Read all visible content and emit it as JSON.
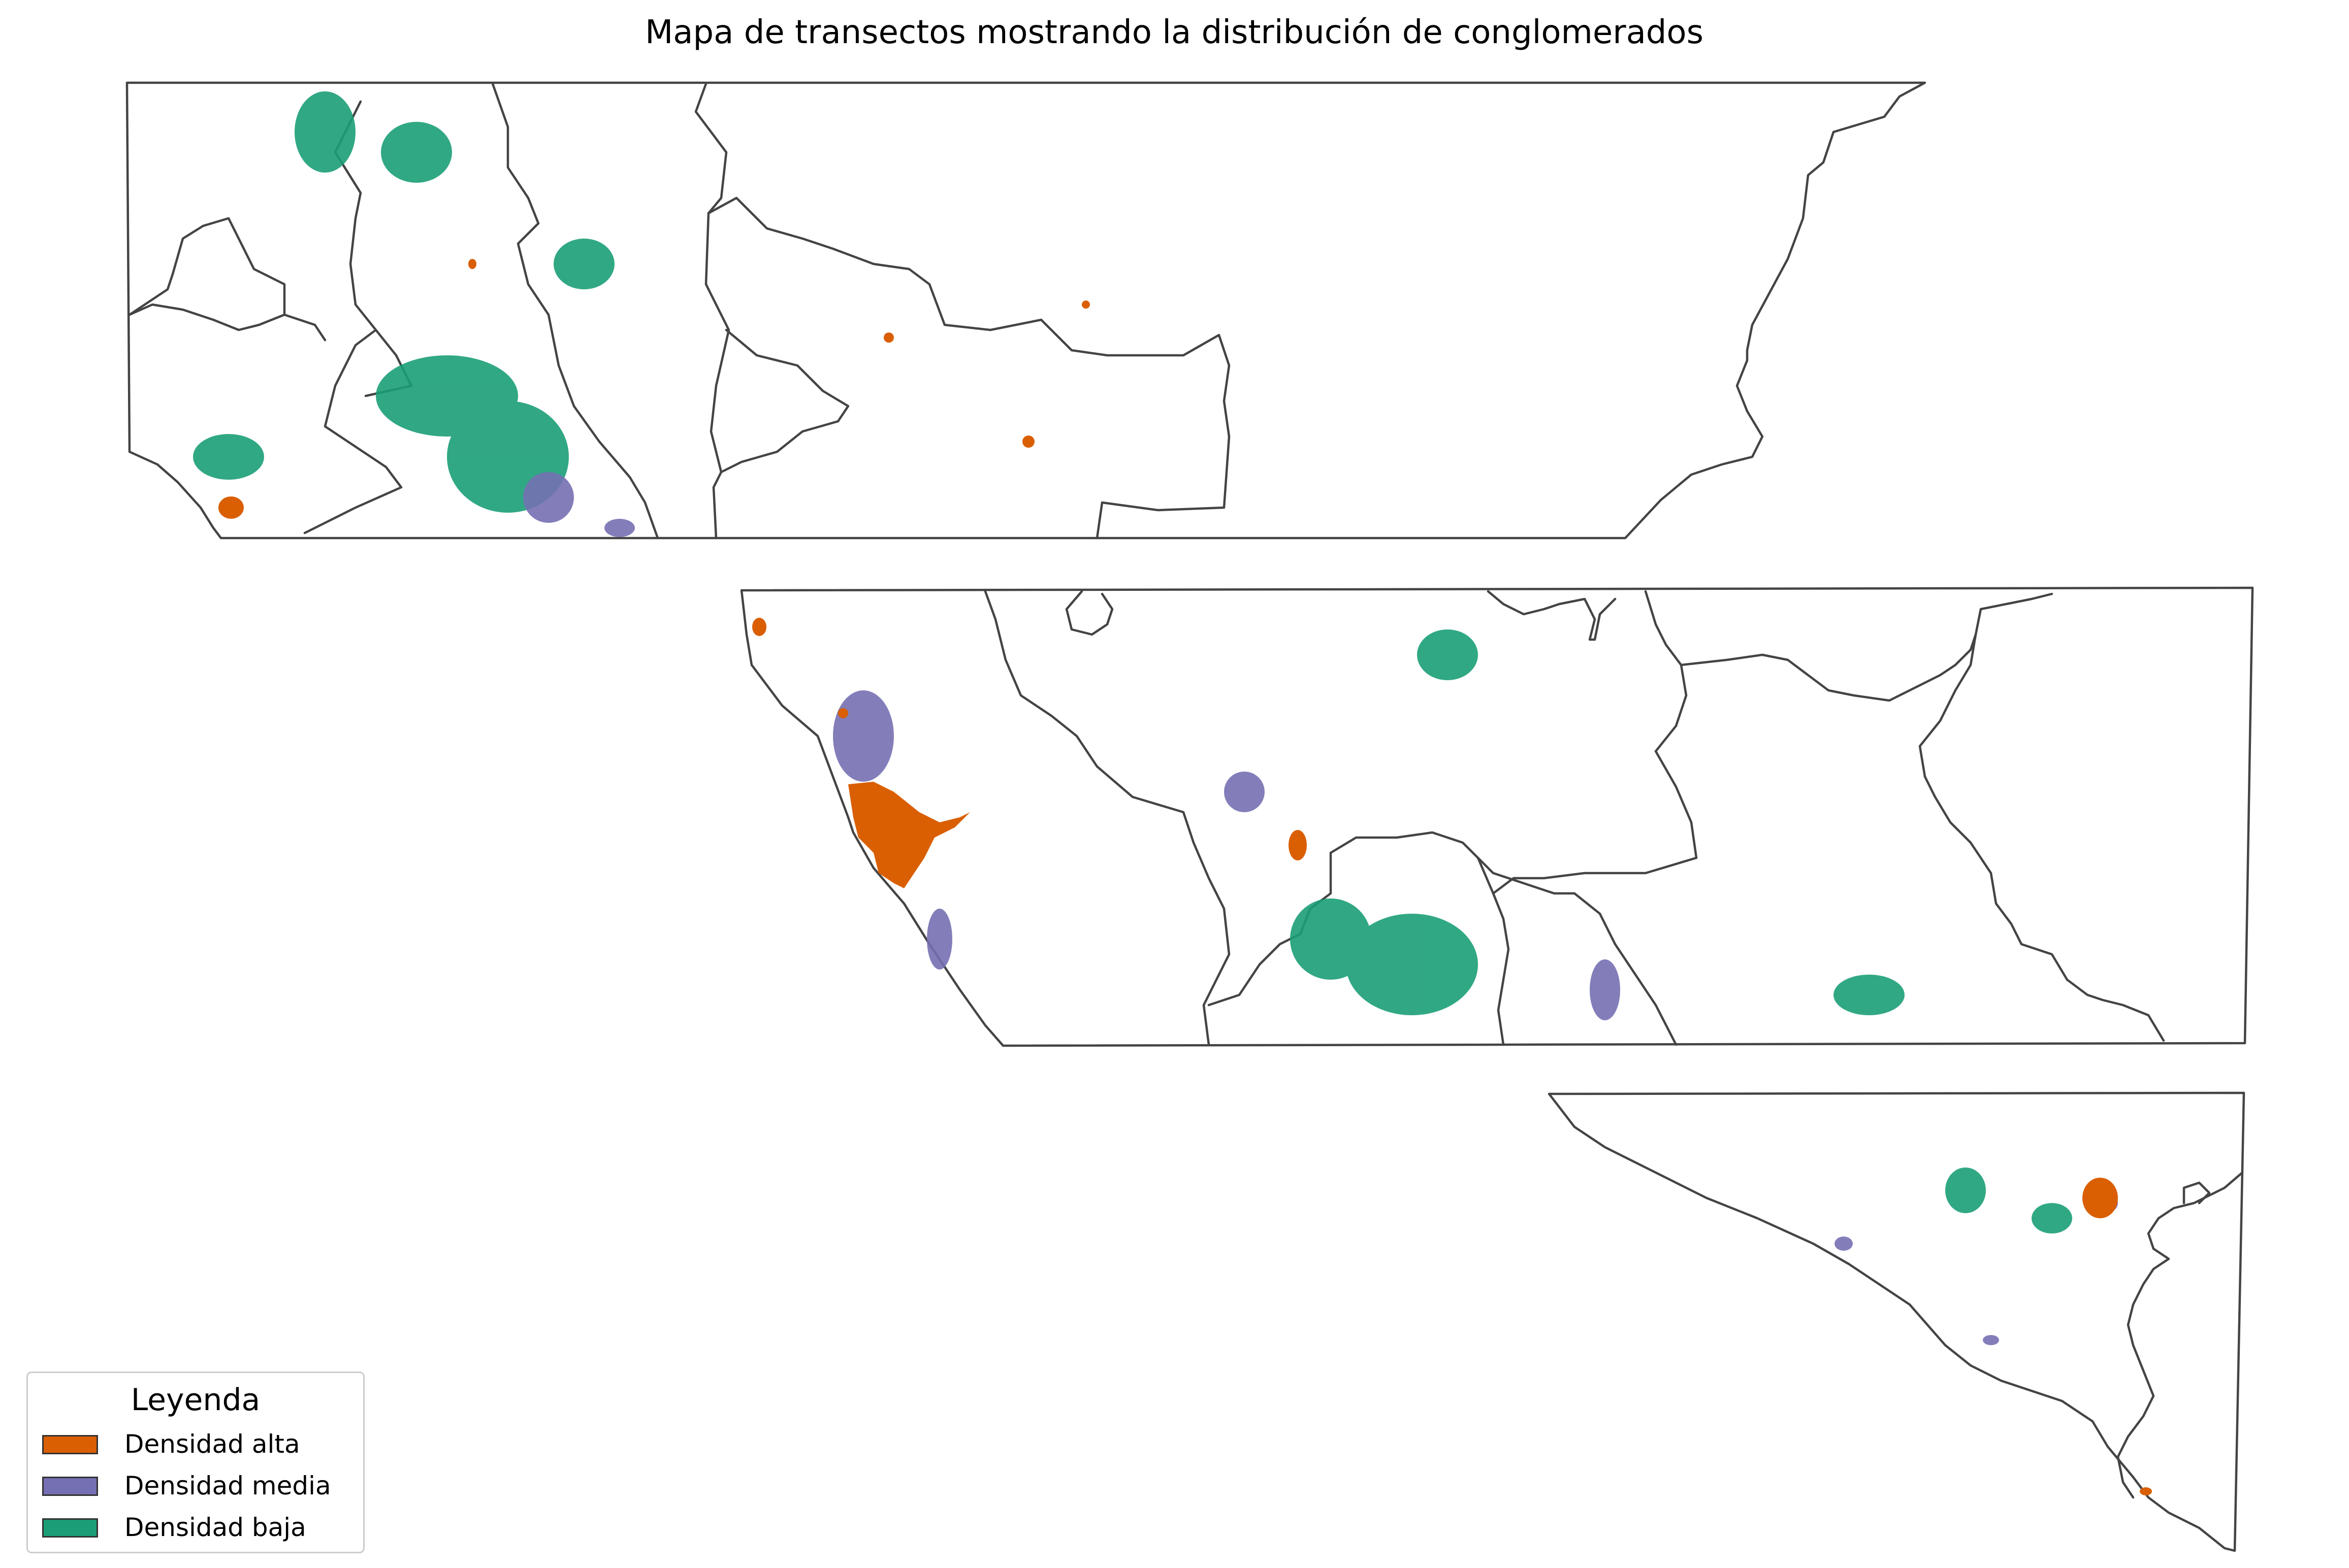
{
  "title": "Mapa de transectos mostrando la distribución de conglomerados",
  "colors": {
    "alta": "#d95f02",
    "media": "#7570b3",
    "baja": "#1b9e77",
    "boundary": "#444444"
  },
  "legend": {
    "title": "Leyenda",
    "items": [
      {
        "label": "Densidad alta",
        "color": "#d95f02",
        "class": "alta"
      },
      {
        "label": "Densidad media",
        "color": "#7570b3",
        "class": "media"
      },
      {
        "label": "Densidad baja",
        "color": "#1b9e77",
        "class": "baja"
      }
    ]
  }
}
